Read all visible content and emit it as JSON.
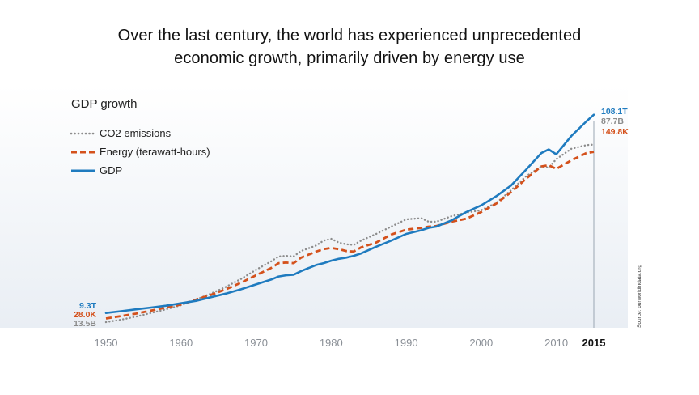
{
  "headline": {
    "line1": "Over the last century, the world has experienced unprecedented",
    "line2": "economic growth, primarily driven by energy use"
  },
  "colors": {
    "gdp": "#1f7bbf",
    "energy": "#d4511c",
    "co2": "#8c8c8c",
    "background_gradient_top": "#ffffff",
    "background_gradient_bottom": "#e9eef4"
  },
  "chart_data": {
    "type": "line",
    "title": "GDP growth",
    "x_ticks": [
      "1950",
      "1960",
      "1970",
      "1980",
      "1990",
      "2000",
      "2010",
      "2015"
    ],
    "xlim": [
      1950,
      2015
    ],
    "y_scale": "indexed",
    "legend_position": "top-left",
    "grid": false,
    "source": "Source: ourworldindata.org",
    "x": [
      1950,
      1952,
      1954,
      1956,
      1958,
      1960,
      1962,
      1964,
      1966,
      1968,
      1970,
      1972,
      1973,
      1974,
      1975,
      1976,
      1978,
      1979,
      1980,
      1981,
      1982,
      1983,
      1984,
      1986,
      1988,
      1990,
      1992,
      1993,
      1994,
      1996,
      1998,
      2000,
      2002,
      2004,
      2006,
      2008,
      2009,
      2010,
      2012,
      2014,
      2015
    ],
    "series": [
      {
        "name": "CO2 emissions",
        "style": "dotted",
        "start_label": "13.5B",
        "end_label": "87.7B",
        "values": [
          0,
          4,
          9,
          15,
          21,
          28,
          37,
          47,
          58,
          71,
          86,
          100,
          108,
          109,
          108,
          117,
          126,
          134,
          137,
          131,
          128,
          127,
          134,
          145,
          157,
          169,
          171,
          165,
          165,
          174,
          180,
          184,
          196,
          217,
          240,
          256,
          254,
          268,
          285,
          291,
          292
        ]
      },
      {
        "name": "Energy (terawatt-hours)",
        "style": "dashed",
        "start_label": "28.0K",
        "end_label": "149.8K",
        "values": [
          6,
          10,
          14,
          19,
          24,
          29,
          37,
          45,
          54,
          65,
          77,
          89,
          97,
          98,
          97,
          106,
          116,
          120,
          122,
          120,
          117,
          116,
          123,
          131,
          144,
          152,
          155,
          157,
          158,
          165,
          170,
          181,
          195,
          214,
          236,
          256,
          258,
          252,
          266,
          278,
          280
        ]
      },
      {
        "name": "GDP",
        "style": "solid",
        "start_label": "9.3T",
        "end_label": "108.1T",
        "values": [
          15,
          18,
          21,
          24,
          27,
          31,
          35,
          41,
          47,
          54,
          62,
          70,
          75,
          77,
          78,
          84,
          94,
          97,
          101,
          104,
          106,
          109,
          113,
          124,
          134,
          145,
          151,
          155,
          157,
          167,
          181,
          192,
          207,
          225,
          251,
          278,
          284,
          276,
          306,
          330,
          341
        ]
      }
    ]
  }
}
